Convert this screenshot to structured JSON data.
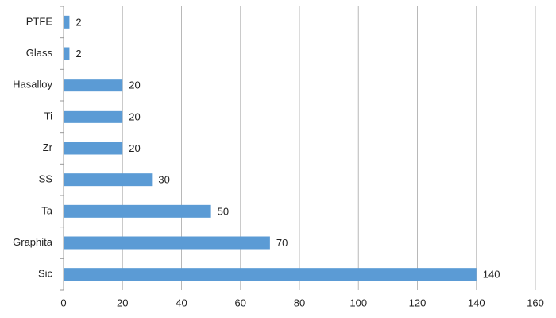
{
  "chart_data": {
    "type": "bar",
    "orientation": "horizontal",
    "categories": [
      "PTFE",
      "Glass",
      "Hasalloy",
      "Ti",
      "Zr",
      "SS",
      "Ta",
      "Graphita",
      "Sic"
    ],
    "values": [
      2,
      2,
      20,
      20,
      20,
      30,
      50,
      70,
      140
    ],
    "color": "#5b9bd5",
    "xlim": [
      0,
      160
    ],
    "xticks": [
      0,
      20,
      40,
      60,
      80,
      100,
      120,
      140,
      160
    ],
    "grid": true
  }
}
